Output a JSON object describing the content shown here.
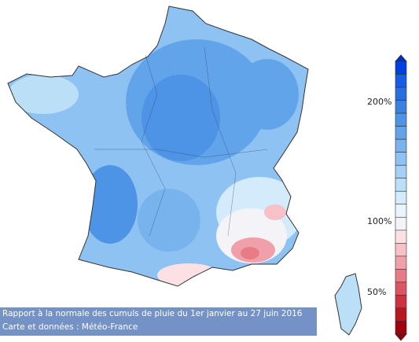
{
  "legend": {
    "labels": [
      "200%",
      "100%",
      "50%"
    ]
  },
  "caption": {
    "lines": [
      "Rapport à la normale des cumuls de pluie du 1er janvier au 27 juin 2016",
      "Carte et données : Météo-France"
    ]
  }
}
